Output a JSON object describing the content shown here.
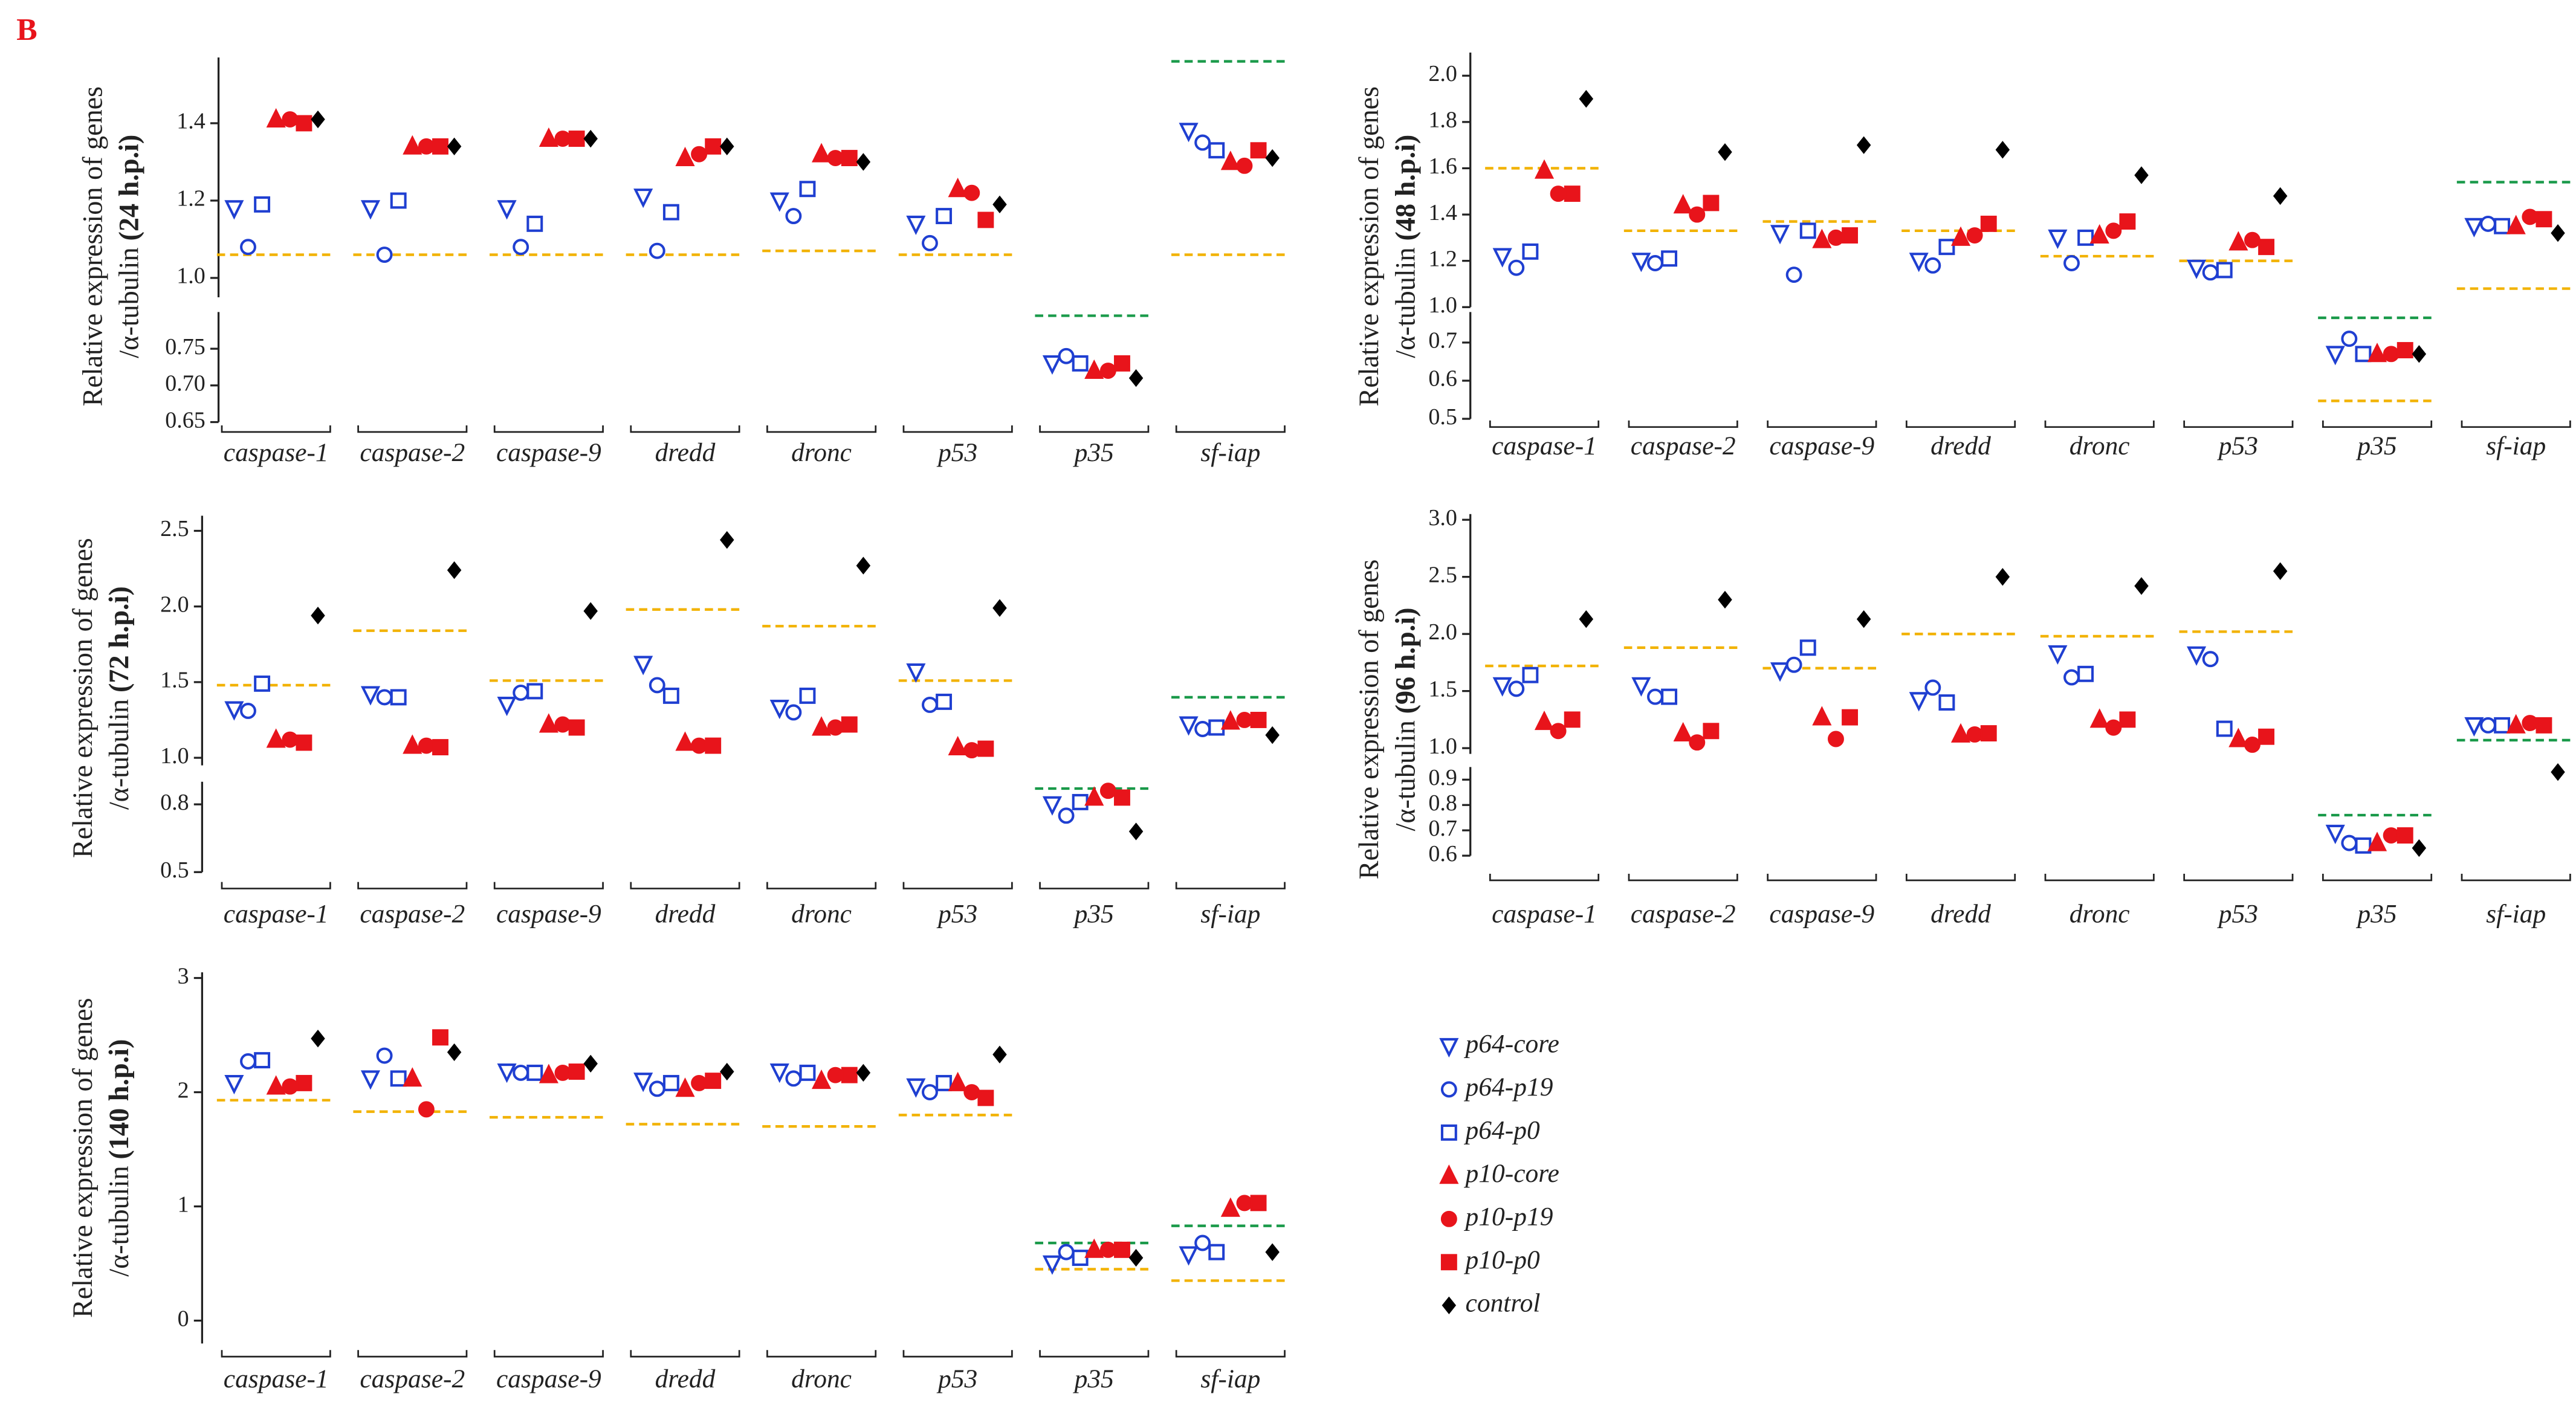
{
  "panel_label": "B",
  "chart_data": [
    {
      "type": "scatter",
      "y_label": "Relative expression of genes",
      "y_label_2": "/α-tubulin",
      "y_label_time": "(24 h.p.i)",
      "categories": [
        "caspase-1",
        "caspase-2",
        "caspase-9",
        "dredd",
        "dronc",
        "p53",
        "p35",
        "sf-iap"
      ],
      "segments": [
        {
          "ylim": [
            0.65,
            0.8
          ],
          "yticks": [
            0.65,
            {
              "value": 0.7,
              "label": "0.70"
            },
            0.75
          ]
        },
        {
          "ylim": [
            0.95,
            1.57
          ],
          "yticks": [
            {
              "value": 1,
              "label": "1.0"
            },
            1.2,
            1.4
          ]
        }
      ],
      "series": [
        {
          "name": "p64-core",
          "color": "#1f3fd1",
          "marker": "triangle-down",
          "filled": false,
          "values": [
            1.18,
            1.18,
            1.18,
            1.21,
            1.2,
            1.14,
            0.73,
            1.38
          ]
        },
        {
          "name": "p64-p19",
          "color": "#1f3fd1",
          "marker": "circle",
          "filled": false,
          "values": [
            1.08,
            1.06,
            1.08,
            1.07,
            1.16,
            1.09,
            0.74,
            1.35
          ]
        },
        {
          "name": "p64-p0",
          "color": "#1f3fd1",
          "marker": "square",
          "filled": false,
          "values": [
            1.19,
            1.2,
            1.14,
            1.17,
            1.23,
            1.16,
            0.73,
            1.33
          ]
        },
        {
          "name": "p10-core",
          "color": "#e8141b",
          "marker": "triangle",
          "filled": true,
          "values": [
            1.41,
            1.34,
            1.36,
            1.31,
            1.32,
            1.23,
            0.72,
            1.3
          ]
        },
        {
          "name": "p10-p19",
          "color": "#e8141b",
          "marker": "circle",
          "filled": true,
          "values": [
            1.41,
            1.34,
            1.36,
            1.32,
            1.31,
            1.22,
            0.72,
            1.29
          ]
        },
        {
          "name": "p10-p0",
          "color": "#e8141b",
          "marker": "square",
          "filled": true,
          "values": [
            1.4,
            1.34,
            1.36,
            1.34,
            1.31,
            1.15,
            0.73,
            1.33
          ]
        },
        {
          "name": "control",
          "color": "#000000",
          "marker": "diamond",
          "filled": true,
          "values": [
            1.41,
            1.34,
            1.36,
            1.34,
            1.3,
            1.19,
            0.71,
            1.31
          ]
        }
      ],
      "reference_lines": [
        {
          "color": "#f2b200",
          "values": [
            1.06,
            1.06,
            1.06,
            1.06,
            1.07,
            1.06,
            null,
            1.06
          ]
        },
        {
          "color": "#1a9a4a",
          "values": [
            null,
            null,
            null,
            null,
            null,
            null,
            0.795,
            1.56
          ]
        }
      ]
    },
    {
      "type": "scatter",
      "y_label": "Relative expression of genes",
      "y_label_2": "/α-tubulin",
      "y_label_time": "(48 h.p.i)",
      "categories": [
        "caspase-1",
        "caspase-2",
        "caspase-9",
        "dredd",
        "dronc",
        "p53",
        "p35",
        "sf-iap"
      ],
      "segments": [
        {
          "ylim": [
            0.5,
            0.78
          ],
          "yticks": [
            0.5,
            0.6,
            0.7
          ]
        },
        {
          "ylim": [
            1.0,
            2.1
          ],
          "yticks": [
            {
              "value": 1,
              "label": "1.0"
            },
            1.2,
            1.4,
            1.6,
            1.8,
            {
              "value": 2,
              "label": "2.0"
            }
          ]
        }
      ],
      "series": [
        {
          "name": "p64-core",
          "color": "#1f3fd1",
          "marker": "triangle-down",
          "filled": false,
          "values": [
            1.22,
            1.2,
            1.32,
            1.2,
            1.3,
            1.17,
            0.67,
            1.35
          ]
        },
        {
          "name": "p64-p19",
          "color": "#1f3fd1",
          "marker": "circle",
          "filled": false,
          "values": [
            1.17,
            1.19,
            1.14,
            1.18,
            1.19,
            1.15,
            0.71,
            1.36
          ]
        },
        {
          "name": "p64-p0",
          "color": "#1f3fd1",
          "marker": "square",
          "filled": false,
          "values": [
            1.24,
            1.21,
            1.33,
            1.26,
            1.3,
            1.16,
            0.67,
            1.35
          ]
        },
        {
          "name": "p10-core",
          "color": "#e8141b",
          "marker": "triangle",
          "filled": true,
          "values": [
            1.59,
            1.44,
            1.29,
            1.3,
            1.31,
            1.28,
            0.67,
            1.35
          ]
        },
        {
          "name": "p10-p19",
          "color": "#e8141b",
          "marker": "circle",
          "filled": true,
          "values": [
            1.49,
            1.4,
            1.3,
            1.31,
            1.33,
            1.29,
            0.67,
            1.39
          ]
        },
        {
          "name": "p10-p0",
          "color": "#e8141b",
          "marker": "square",
          "filled": true,
          "values": [
            1.49,
            1.45,
            1.31,
            1.36,
            1.37,
            1.26,
            0.68,
            1.38
          ]
        },
        {
          "name": "control",
          "color": "#000000",
          "marker": "diamond",
          "filled": true,
          "values": [
            1.9,
            1.67,
            1.7,
            1.68,
            1.57,
            1.48,
            0.67,
            1.32
          ]
        }
      ],
      "reference_lines": [
        {
          "color": "#f2b200",
          "values": [
            1.6,
            1.33,
            1.37,
            1.33,
            1.22,
            1.2,
            0.547,
            1.08
          ]
        },
        {
          "color": "#1a9a4a",
          "values": [
            null,
            null,
            null,
            null,
            null,
            null,
            0.765,
            1.54
          ]
        }
      ]
    },
    {
      "type": "scatter",
      "y_label": "Relative expression of genes",
      "y_label_2": "/α-tubulin",
      "y_label_time": "(72 h.p.i)",
      "categories": [
        "caspase-1",
        "caspase-2",
        "caspase-9",
        "dredd",
        "dronc",
        "p53",
        "p35",
        "sf-iap"
      ],
      "segments": [
        {
          "ylim": [
            0.5,
            0.9
          ],
          "yticks": [
            0.5,
            0.8
          ]
        },
        {
          "ylim": [
            0.95,
            2.6
          ],
          "yticks": [
            {
              "value": 1,
              "label": "1.0"
            },
            1.5,
            {
              "value": 2,
              "label": "2.0"
            },
            2.5
          ]
        }
      ],
      "series": [
        {
          "name": "p64-core",
          "color": "#1f3fd1",
          "marker": "triangle-down",
          "filled": false,
          "values": [
            1.32,
            1.42,
            1.35,
            1.62,
            1.33,
            1.57,
            0.8,
            1.22
          ]
        },
        {
          "name": "p64-p19",
          "color": "#1f3fd1",
          "marker": "circle",
          "filled": false,
          "values": [
            1.31,
            1.4,
            1.43,
            1.48,
            1.3,
            1.35,
            0.75,
            1.19
          ]
        },
        {
          "name": "p64-p0",
          "color": "#1f3fd1",
          "marker": "square",
          "filled": false,
          "values": [
            1.49,
            1.4,
            1.44,
            1.41,
            1.41,
            1.37,
            0.81,
            1.2
          ]
        },
        {
          "name": "p10-core",
          "color": "#e8141b",
          "marker": "triangle",
          "filled": true,
          "values": [
            1.12,
            1.08,
            1.22,
            1.1,
            1.2,
            1.07,
            0.83,
            1.24
          ]
        },
        {
          "name": "p10-p19",
          "color": "#e8141b",
          "marker": "circle",
          "filled": true,
          "values": [
            1.12,
            1.08,
            1.22,
            1.08,
            1.2,
            1.05,
            0.86,
            1.25
          ]
        },
        {
          "name": "p10-p0",
          "color": "#e8141b",
          "marker": "square",
          "filled": true,
          "values": [
            1.1,
            1.07,
            1.2,
            1.08,
            1.22,
            1.06,
            0.83,
            1.25
          ]
        },
        {
          "name": "control",
          "color": "#000000",
          "marker": "diamond",
          "filled": true,
          "values": [
            1.94,
            2.24,
            1.97,
            2.44,
            2.27,
            1.99,
            0.68,
            1.15
          ]
        }
      ],
      "reference_lines": [
        {
          "color": "#f2b200",
          "values": [
            1.48,
            1.84,
            1.51,
            1.98,
            1.87,
            1.51,
            null,
            null
          ]
        },
        {
          "color": "#1a9a4a",
          "values": [
            null,
            null,
            null,
            null,
            null,
            null,
            0.87,
            1.4
          ]
        }
      ]
    },
    {
      "type": "scatter",
      "y_label": "Relative expression of genes",
      "y_label_2": "/α-tubulin",
      "y_label_time": "(96 h.p.i)",
      "categories": [
        "caspase-1",
        "caspase-2",
        "caspase-9",
        "dredd",
        "dronc",
        "p53",
        "p35",
        "sf-iap"
      ],
      "segments": [
        {
          "ylim": [
            0.6,
            0.95
          ],
          "yticks": [
            0.6,
            0.7,
            0.8,
            0.9
          ]
        },
        {
          "ylim": [
            0.95,
            3.05
          ],
          "yticks": [
            {
              "value": 1,
              "label": "1.0"
            },
            1.5,
            {
              "value": 2,
              "label": "2.0"
            },
            2.5,
            {
              "value": 3,
              "label": "3.0"
            }
          ]
        }
      ],
      "series": [
        {
          "name": "p64-core",
          "color": "#1f3fd1",
          "marker": "triangle-down",
          "filled": false,
          "values": [
            1.55,
            1.55,
            1.68,
            1.42,
            1.83,
            1.82,
            0.69,
            1.2
          ]
        },
        {
          "name": "p64-p19",
          "color": "#1f3fd1",
          "marker": "circle",
          "filled": false,
          "values": [
            1.52,
            1.45,
            1.73,
            1.53,
            1.62,
            1.78,
            0.65,
            1.2
          ]
        },
        {
          "name": "p64-p0",
          "color": "#1f3fd1",
          "marker": "square",
          "filled": false,
          "values": [
            1.64,
            1.45,
            1.88,
            1.4,
            1.65,
            1.17,
            0.64,
            1.2
          ]
        },
        {
          "name": "p10-core",
          "color": "#e8141b",
          "marker": "triangle",
          "filled": true,
          "values": [
            1.23,
            1.13,
            1.27,
            1.12,
            1.25,
            1.08,
            0.65,
            1.2
          ]
        },
        {
          "name": "p10-p19",
          "color": "#e8141b",
          "marker": "circle",
          "filled": true,
          "values": [
            1.15,
            1.05,
            1.08,
            1.12,
            1.18,
            1.03,
            0.68,
            1.22
          ]
        },
        {
          "name": "p10-p0",
          "color": "#e8141b",
          "marker": "square",
          "filled": true,
          "values": [
            1.25,
            1.15,
            1.27,
            1.13,
            1.25,
            1.1,
            0.68,
            1.2
          ]
        },
        {
          "name": "control",
          "color": "#000000",
          "marker": "diamond",
          "filled": true,
          "values": [
            2.13,
            2.3,
            2.13,
            2.5,
            2.42,
            2.55,
            0.63,
            0.93
          ]
        }
      ],
      "reference_lines": [
        {
          "color": "#f2b200",
          "values": [
            1.72,
            1.88,
            1.7,
            2.0,
            1.98,
            2.02,
            null,
            null
          ]
        },
        {
          "color": "#1a9a4a",
          "values": [
            null,
            null,
            null,
            null,
            null,
            null,
            0.76,
            1.07
          ]
        }
      ]
    },
    {
      "type": "scatter",
      "y_label": "Relative expression of genes",
      "y_label_2": "/α-tubulin",
      "y_label_time": "(140 h.p.i)",
      "categories": [
        "caspase-1",
        "caspase-2",
        "caspase-9",
        "dredd",
        "dronc",
        "p53",
        "p35",
        "sf-iap"
      ],
      "segments": [
        {
          "ylim": [
            -0.2,
            3.05
          ],
          "yticks": [
            0,
            1,
            2,
            3
          ]
        }
      ],
      "series": [
        {
          "name": "p64-core",
          "color": "#1f3fd1",
          "marker": "triangle-down",
          "filled": false,
          "values": [
            2.08,
            2.12,
            2.18,
            2.1,
            2.18,
            2.05,
            0.5,
            0.58
          ]
        },
        {
          "name": "p64-p19",
          "color": "#1f3fd1",
          "marker": "circle",
          "filled": false,
          "values": [
            2.27,
            2.32,
            2.17,
            2.03,
            2.12,
            2.0,
            0.6,
            0.68
          ]
        },
        {
          "name": "p64-p0",
          "color": "#1f3fd1",
          "marker": "square",
          "filled": false,
          "values": [
            2.28,
            2.12,
            2.17,
            2.08,
            2.17,
            2.08,
            0.55,
            0.6
          ]
        },
        {
          "name": "p10-core",
          "color": "#e8141b",
          "marker": "triangle",
          "filled": true,
          "values": [
            2.05,
            2.12,
            2.15,
            2.03,
            2.1,
            2.08,
            0.62,
            0.98
          ]
        },
        {
          "name": "p10-p19",
          "color": "#e8141b",
          "marker": "circle",
          "filled": true,
          "values": [
            2.05,
            1.85,
            2.17,
            2.08,
            2.15,
            2.0,
            0.62,
            1.03
          ]
        },
        {
          "name": "p10-p0",
          "color": "#e8141b",
          "marker": "square",
          "filled": true,
          "values": [
            2.08,
            2.48,
            2.18,
            2.1,
            2.15,
            1.95,
            0.62,
            1.03
          ]
        },
        {
          "name": "control",
          "color": "#000000",
          "marker": "diamond",
          "filled": true,
          "values": [
            2.47,
            2.35,
            2.25,
            2.18,
            2.17,
            2.33,
            0.55,
            0.6
          ]
        }
      ],
      "reference_lines": [
        {
          "color": "#f2b200",
          "values": [
            1.93,
            1.83,
            1.78,
            1.72,
            1.7,
            1.8,
            0.45,
            0.35
          ]
        },
        {
          "color": "#1a9a4a",
          "values": [
            null,
            null,
            null,
            null,
            null,
            null,
            0.68,
            0.83
          ]
        }
      ]
    }
  ]
}
